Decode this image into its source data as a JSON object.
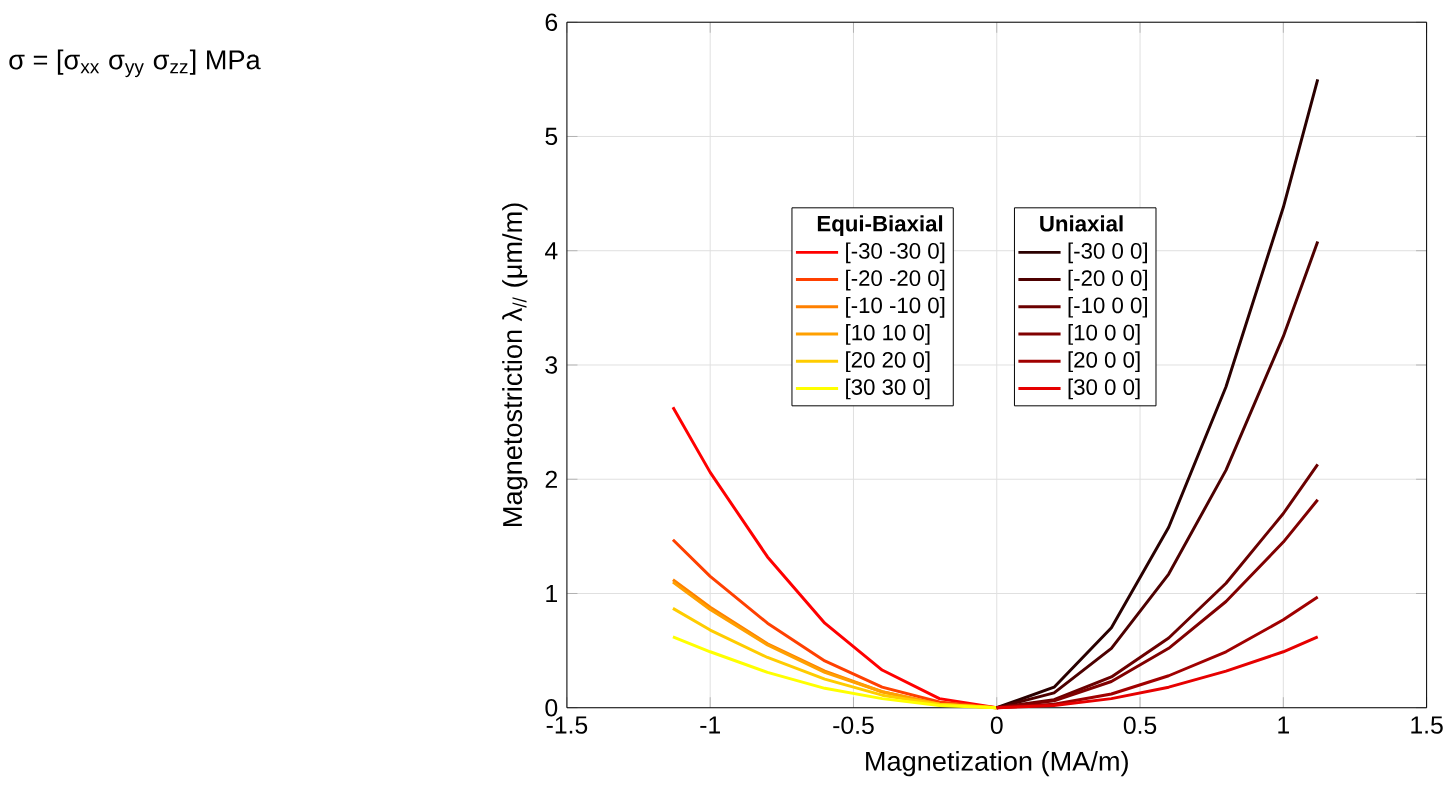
{
  "chart_data": [
    {
      "type": "line",
      "xlabel": "Magnetization (MA/m)",
      "ylabel": "Magnetostriction λ$_{//}$ (μm/m)",
      "legend_title": "Equi-Biaxial",
      "legend": "center",
      "grid": true,
      "annotations": [
        "σ = [σ$_{xx}$   σ$_{yy}$   σ$_{zz}$] MPa"
      ],
      "xlim": [
        -1.5,
        1.5
      ],
      "ylim": [
        0,
        6
      ],
      "xticks": [
        -1.5,
        -1,
        -0.5,
        0,
        0.5,
        1,
        1.5
      ],
      "yticks": [
        0,
        1,
        2,
        3,
        4,
        5,
        6
      ],
      "x": [
        -1.13,
        -1.0,
        -0.8,
        -0.6,
        -0.4,
        -0.2,
        0
      ],
      "series": [
        {
          "name": "[-30 -30 0]",
          "color": "#ff0000",
          "values": [
            2.63,
            2.06,
            1.32,
            0.74,
            0.33,
            0.08,
            0
          ]
        },
        {
          "name": "[-20 -20 0]",
          "color": "#ff4000",
          "values": [
            1.47,
            1.15,
            0.74,
            0.41,
            0.18,
            0.05,
            0
          ]
        },
        {
          "name": "[-10 -10 0]",
          "color": "#ff8000",
          "values": [
            1.12,
            0.88,
            0.56,
            0.32,
            0.14,
            0.03,
            0
          ]
        },
        {
          "name": "[10 10 0]",
          "color": "#ffa000",
          "values": [
            1.1,
            0.86,
            0.55,
            0.31,
            0.14,
            0.03,
            0
          ]
        },
        {
          "name": "[20 20 0]",
          "color": "#ffcc00",
          "values": [
            0.87,
            0.68,
            0.44,
            0.25,
            0.11,
            0.03,
            0
          ]
        },
        {
          "name": "[30 30 0]",
          "color": "#ffff00",
          "values": [
            0.62,
            0.49,
            0.31,
            0.17,
            0.08,
            0.02,
            0
          ]
        }
      ]
    },
    {
      "type": "line",
      "legend_title": "Uniaxial",
      "legend": "center right",
      "tick_labels": false,
      "xlim": [
        -1.5,
        1.5
      ],
      "ylim": [
        0,
        6
      ],
      "x": [
        0,
        0.2,
        0.4,
        0.6,
        0.8,
        1.0,
        1.12
      ],
      "series": [
        {
          "name": "[-30 0 0]",
          "color": "#2a0000",
          "values": [
            0,
            0.18,
            0.7,
            1.58,
            2.81,
            4.38,
            5.5
          ]
        },
        {
          "name": "[-20 0 0]",
          "color": "#4d0000",
          "values": [
            0,
            0.13,
            0.52,
            1.17,
            2.08,
            3.25,
            4.08
          ]
        },
        {
          "name": "[-10 0 0]",
          "color": "#6b0000",
          "values": [
            0,
            0.07,
            0.27,
            0.61,
            1.09,
            1.7,
            2.13
          ]
        },
        {
          "name": "[10 0 0]",
          "color": "#800000",
          "values": [
            0,
            0.06,
            0.23,
            0.52,
            0.93,
            1.45,
            1.82
          ]
        },
        {
          "name": "[20 0 0]",
          "color": "#a00000",
          "values": [
            0,
            0.03,
            0.12,
            0.28,
            0.49,
            0.77,
            0.97
          ]
        },
        {
          "name": "[30 0 0]",
          "color": "#e60000",
          "values": [
            0,
            0.02,
            0.08,
            0.18,
            0.32,
            0.49,
            0.62
          ]
        }
      ]
    }
  ]
}
